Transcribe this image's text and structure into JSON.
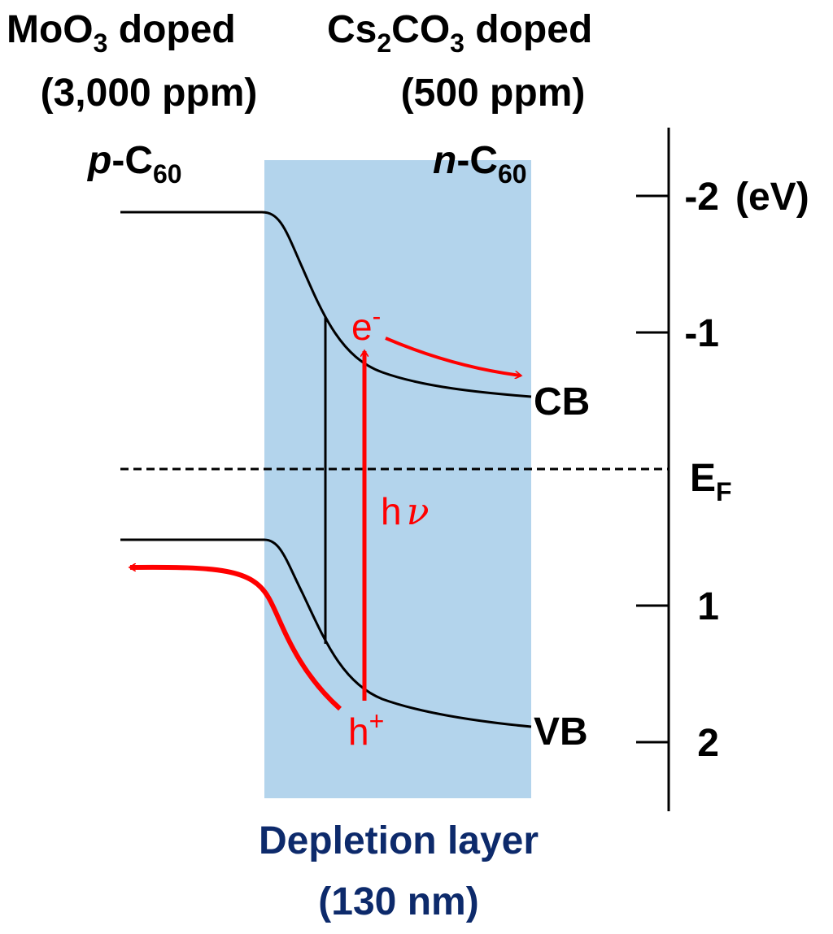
{
  "left": {
    "title": [
      "MoO",
      "3",
      " doped"
    ],
    "amount": "(3,000 ppm)",
    "material": [
      "p",
      "-C",
      "60"
    ]
  },
  "right": {
    "title": [
      "Cs",
      "2",
      "CO",
      "3",
      " doped"
    ],
    "amount": "(500 ppm)",
    "material": [
      "n",
      "-C",
      "60"
    ]
  },
  "energy_axis": {
    "ticks": [
      -2,
      -1,
      1,
      2
    ],
    "unit": "(eV)",
    "fermi": [
      "E",
      "F"
    ]
  },
  "bands": {
    "cb": "CB",
    "vb": "VB"
  },
  "carriers": {
    "electron": [
      "e",
      "-"
    ],
    "hole": [
      "h",
      "+"
    ],
    "photon": [
      "h",
      "ν"
    ]
  },
  "depletion": {
    "label": "Depletion layer",
    "width": "(130 nm)"
  }
}
